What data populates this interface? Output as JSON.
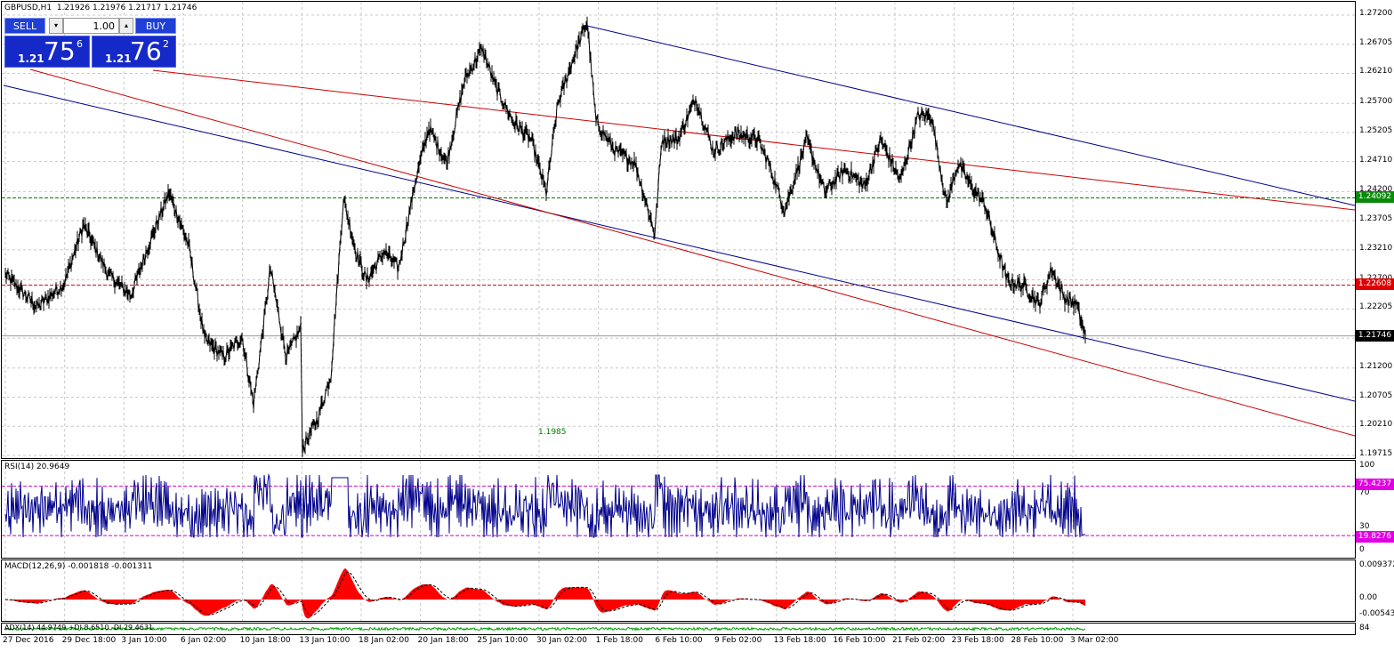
{
  "header": {
    "symbol": "GBPUSD,H1",
    "ohlc": "1.21926 1.21976 1.21717 1.21746"
  },
  "trade_panel": {
    "sell_label": "SELL",
    "buy_label": "BUY",
    "lot": "1.00",
    "sell_prefix": "1.21",
    "sell_big": "75",
    "sell_sup": "6",
    "buy_prefix": "1.21",
    "buy_big": "76",
    "buy_sup": "2",
    "spin_down": "▾",
    "spin_up": "▴"
  },
  "price_axis": [
    "1.27200",
    "1.26705",
    "1.26210",
    "1.25700",
    "1.25205",
    "1.24710",
    "1.24200",
    "1.23705",
    "1.23210",
    "1.22700",
    "1.22205",
    "1.21710",
    "1.21200",
    "1.20705",
    "1.20210",
    "1.19715"
  ],
  "price_tags": {
    "green": "1.24092",
    "red": "1.22608",
    "current": "1.21746"
  },
  "annotation_low": "1.1985",
  "rsi": {
    "title": "RSI(14) 20.9649",
    "axis": [
      "100",
      "70",
      "30",
      "0"
    ],
    "upper_tag": "75.4237",
    "lower_tag": "19.8276"
  },
  "macd": {
    "title": "MACD(12,26,9) -0.001818 -0.001311",
    "axis": [
      "0.009372",
      "0.00",
      "-0.005437"
    ]
  },
  "adx": {
    "title": "ADX(14) 44.9749 +DI 8.6510 -DI 29.4631",
    "axis": "84"
  },
  "time_axis": [
    "27 Dec 2016",
    "29 Dec 18:00",
    "3 Jan 10:00",
    "6 Jan 02:00",
    "10 Jan 18:00",
    "13 Jan 10:00",
    "18 Jan 02:00",
    "20 Jan 18:00",
    "25 Jan 10:00",
    "30 Jan 02:00",
    "1 Feb 18:00",
    "6 Feb 10:00",
    "9 Feb 02:00",
    "13 Feb 18:00",
    "16 Feb 10:00",
    "21 Feb 02:00",
    "23 Feb 18:00",
    "28 Feb 10:00",
    "3 Mar 02:00"
  ],
  "colors": {
    "bg": "#ffffff",
    "grid": "#c8c8c8",
    "price": "#000000",
    "channel_blue": "#00008b",
    "channel_red": "#cc0000",
    "green_level": "#008000",
    "red_level": "#cc0000",
    "rsi_line": "#00008b",
    "rsi_levels": "#cc00cc",
    "macd_hist": "#ff0000"
  },
  "chart_data": {
    "type": "line",
    "title": "GBPUSD,H1",
    "ylim": [
      1.19715,
      1.272
    ],
    "series": [
      {
        "name": "GBPUSD",
        "x": [
          "27 Dec 2016",
          "29 Dec 18:00",
          "3 Jan 10:00",
          "6 Jan 02:00",
          "10 Jan 18:00",
          "13 Jan 10:00",
          "18 Jan 02:00",
          "20 Jan 18:00",
          "25 Jan 10:00",
          "30 Jan 02:00",
          "1 Feb 18:00",
          "6 Feb 10:00",
          "9 Feb 02:00",
          "13 Feb 18:00",
          "16 Feb 10:00",
          "21 Feb 02:00",
          "23 Feb 18:00",
          "28 Feb 10:00",
          "3 Mar 02:00"
        ],
        "values": [
          1.227,
          1.2305,
          1.23,
          1.24,
          1.218,
          1.204,
          1.239,
          1.236,
          1.262,
          1.251,
          1.256,
          1.2395,
          1.254,
          1.25,
          1.247,
          1.246,
          1.251,
          1.227,
          1.2175
        ]
      }
    ]
  }
}
